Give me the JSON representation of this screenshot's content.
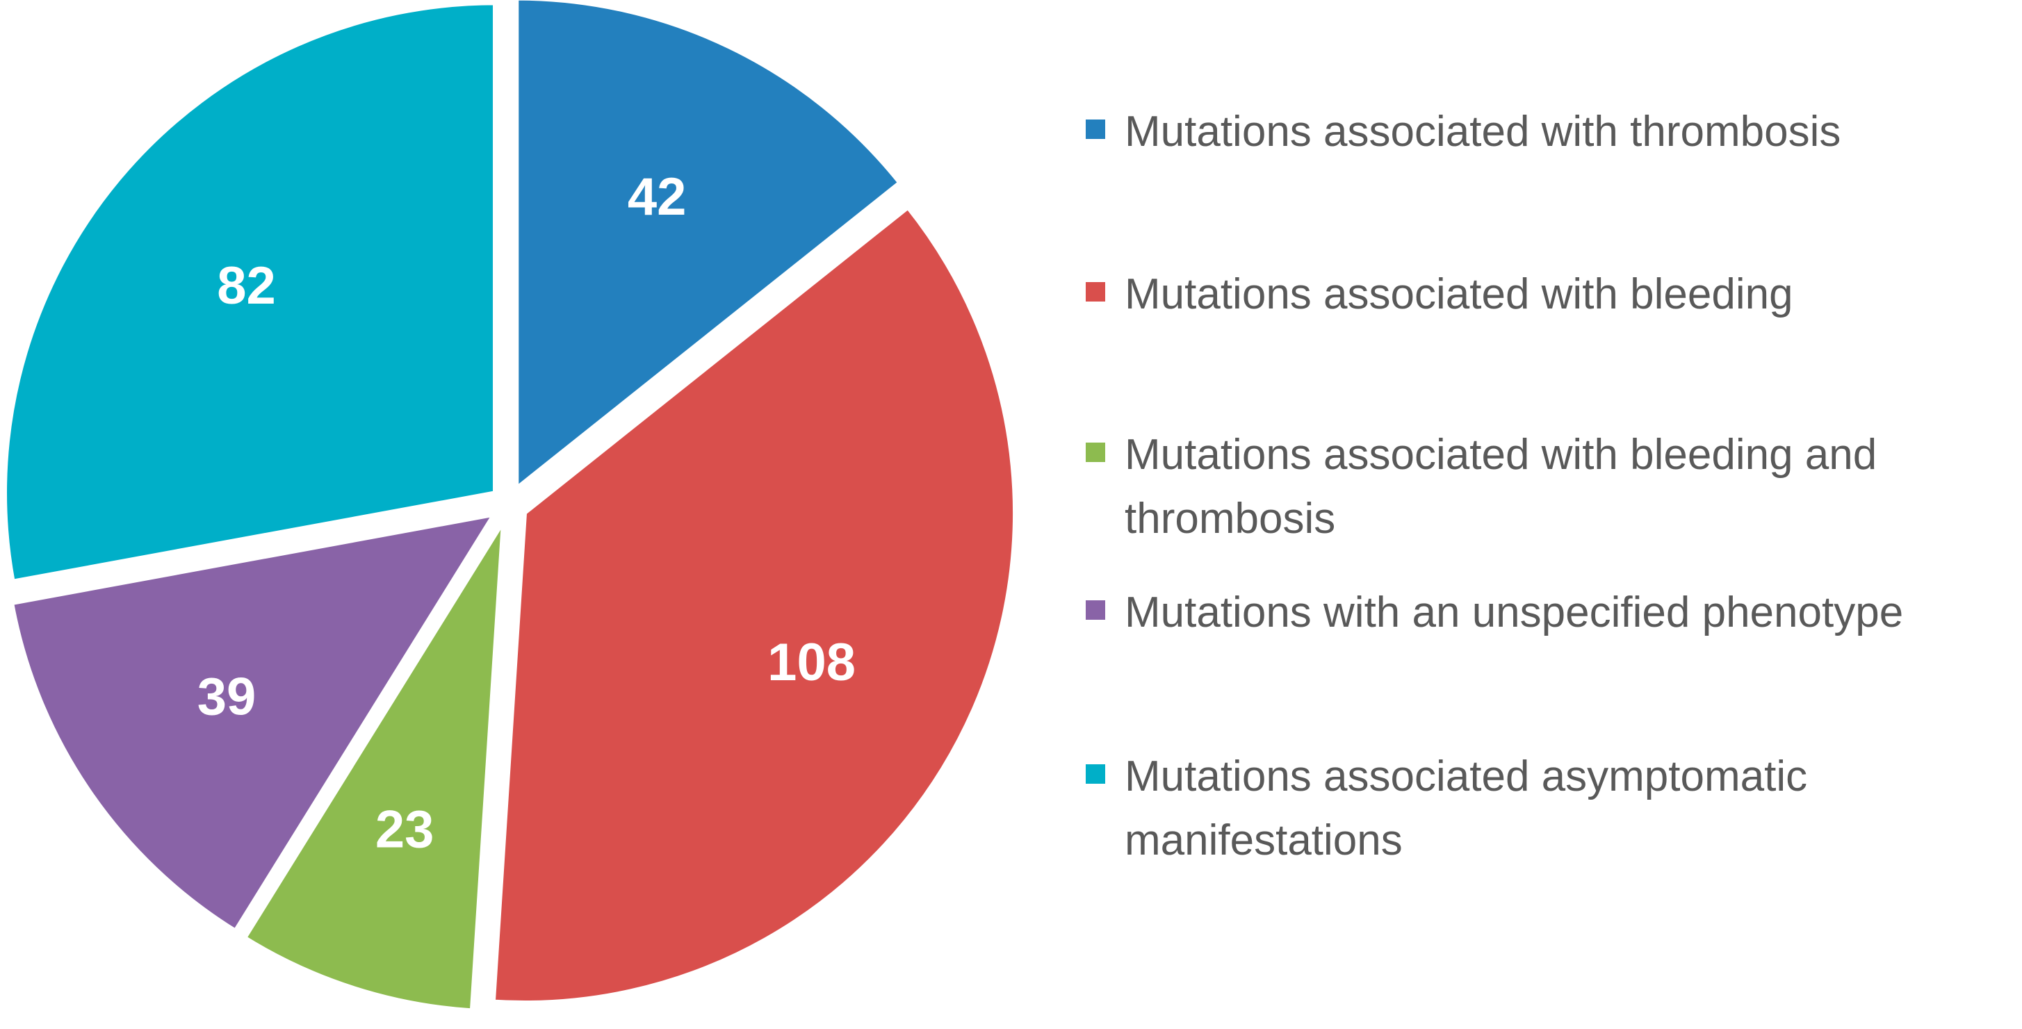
{
  "chart_data": {
    "type": "pie",
    "title": "",
    "slices": [
      {
        "label": "Mutations associated with thrombosis",
        "value": 42,
        "color": "#2380BE"
      },
      {
        "label": "Mutations associated with bleeding",
        "value": 108,
        "color": "#D94F4C"
      },
      {
        "label": "Mutations associated with bleeding and thrombosis",
        "value": 23,
        "color": "#8DBB4F"
      },
      {
        "label": "Mutations with an unspecified phenotype",
        "value": 39,
        "color": "#8963A7"
      },
      {
        "label": "Mutations associated asymptomatic manifestations",
        "value": 82,
        "color": "#00AFC8"
      }
    ],
    "data_labels_shown": true,
    "exploded": true,
    "start_angle": "top, clockwise",
    "legend_placement": "right"
  },
  "legend": {
    "items": [
      {
        "label": "Mutations associated with thrombosis",
        "color": "#2380BE"
      },
      {
        "label": "Mutations associated with bleeding",
        "color": "#D94F4C"
      },
      {
        "label": "Mutations associated with bleeding and thrombosis",
        "color": "#8DBB4F"
      },
      {
        "label": "Mutations with an unspecified phenotype",
        "color": "#8963A7"
      },
      {
        "label": "Mutations associated asymptomatic manifestations",
        "color": "#00AFC8"
      }
    ]
  }
}
